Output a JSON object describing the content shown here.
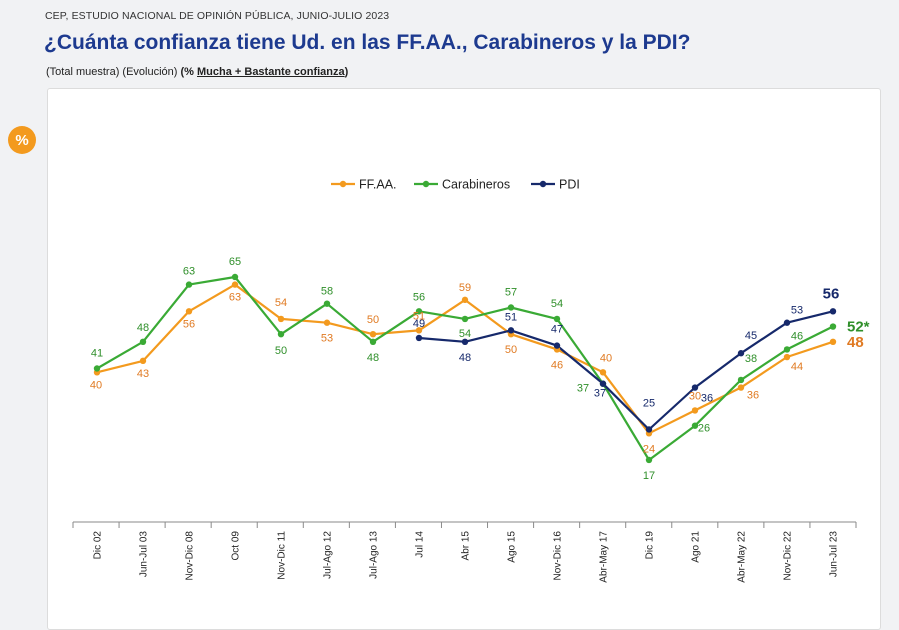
{
  "header": {
    "source": "CEP, ESTUDIO NACIONAL DE OPINIÓN PÚBLICA, JUNIO-JULIO 2023",
    "title": "¿Cuánta confianza tiene Ud. en las FF.AA., Carabineros y la PDI?",
    "subtitle_prefix": "(Total muestra) (Evolución) ",
    "subtitle_open": "(% ",
    "subtitle_emph": "Mucha + Bastante confianza",
    "subtitle_close": ")"
  },
  "badge": {
    "label": "%",
    "color": "#f39a1e"
  },
  "chart_data": {
    "type": "line",
    "categories": [
      "Dic 02",
      "Jun-Jul 03",
      "Nov-Dic 08",
      "Oct 09",
      "Nov-Dic 11",
      "Jul-Ago 12",
      "Jul-Ago 13",
      "Jul 14",
      "Abr 15",
      "Ago 15",
      "Nov-Dic 16",
      "Abr-May 17",
      "Dic 19",
      "Ago 21",
      "Abr-May 22",
      "Nov-Dic 22",
      "Jun-Jul 23"
    ],
    "legend_position": "top-center",
    "grid": false,
    "ylim": [
      0,
      100
    ],
    "series": [
      {
        "name": "FF.AA.",
        "color": "#f39a1e",
        "label_color": "#e07a22",
        "values": [
          40,
          43,
          56,
          63,
          54,
          53,
          50,
          51,
          59,
          50,
          46,
          40,
          24,
          30,
          36,
          44,
          48
        ],
        "final_label": "48"
      },
      {
        "name": "Carabineros",
        "color": "#3aaa35",
        "label_color": "#2f8f2a",
        "values": [
          41,
          48,
          63,
          65,
          50,
          58,
          48,
          56,
          54,
          57,
          54,
          37,
          17,
          26,
          38,
          46,
          52
        ],
        "final_label": "52*"
      },
      {
        "name": "PDI",
        "color": "#16296b",
        "label_color": "#16296b",
        "values": [
          null,
          null,
          null,
          null,
          null,
          null,
          null,
          49,
          48,
          51,
          47,
          37,
          25,
          36,
          45,
          53,
          56
        ],
        "final_label": "56"
      }
    ]
  }
}
